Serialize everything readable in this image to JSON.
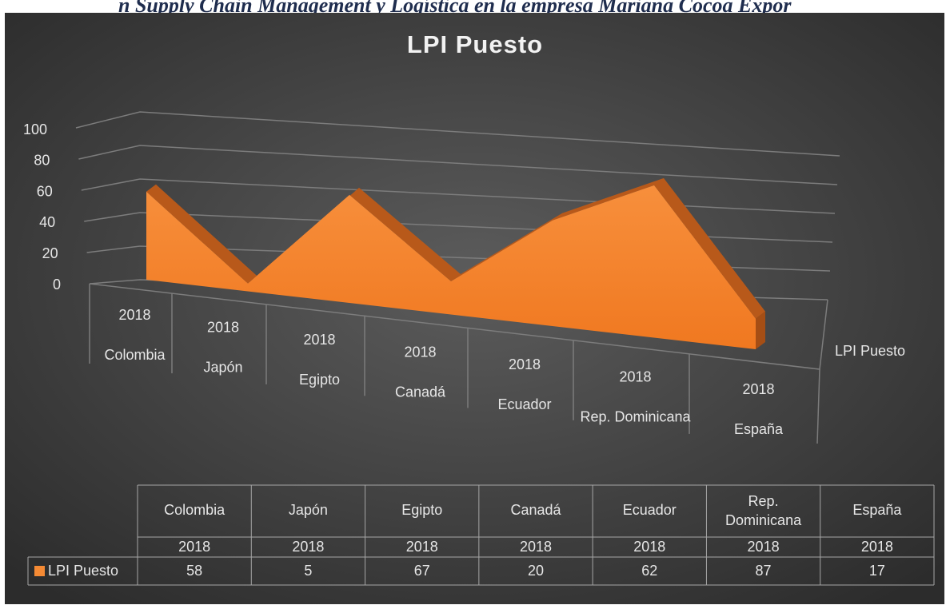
{
  "header_text": "n Supply Chain Management y Logística en la empresa Mariana Cocoa Expor",
  "chart_data": {
    "type": "area3d",
    "title": "LPI Puesto",
    "categories": [
      "Colombia",
      "Japón",
      "Egipto",
      "Canadá",
      "Ecuador",
      "Rep. Dominicana",
      "España"
    ],
    "category_years": [
      "2018",
      "2018",
      "2018",
      "2018",
      "2018",
      "2018",
      "2018"
    ],
    "series": [
      {
        "name": "LPI Puesto",
        "color": "#f58a34",
        "values": [
          58,
          5,
          67,
          20,
          62,
          87,
          17
        ]
      }
    ],
    "ylim": [
      0,
      100
    ],
    "yticks": [
      0,
      20,
      40,
      60,
      80,
      100
    ],
    "grid": true,
    "data_table": true
  }
}
